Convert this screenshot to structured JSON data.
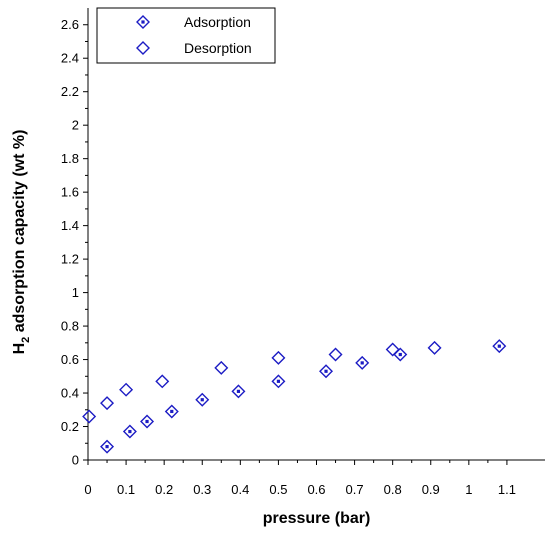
{
  "chart_data": {
    "type": "scatter",
    "xlabel": "pressure (bar)",
    "ylabel_main": "H",
    "ylabel_sub": "2",
    "ylabel_rest": " adsorption capacity (wt %)",
    "xlim": [
      0,
      1.2
    ],
    "ylim": [
      0,
      2.7
    ],
    "xticks": [
      0,
      0.1,
      0.2,
      0.3,
      0.4,
      0.5,
      0.6,
      0.7,
      0.8,
      0.9,
      1,
      1.1
    ],
    "yticks": [
      0,
      0.2,
      0.4,
      0.6,
      0.8,
      1,
      1.2,
      1.4,
      1.6,
      1.8,
      2,
      2.2,
      2.4,
      2.6
    ],
    "grid": false,
    "legend_position": "top-left",
    "marker_color": "#1c1cc4",
    "series": [
      {
        "name": "Adsorption",
        "marker": "diamond-dot",
        "x": [
          0.05,
          0.11,
          0.155,
          0.22,
          0.3,
          0.395,
          0.5,
          0.625,
          0.72,
          0.82,
          1.08
        ],
        "y": [
          0.08,
          0.17,
          0.23,
          0.29,
          0.36,
          0.41,
          0.47,
          0.53,
          0.58,
          0.63,
          0.68
        ]
      },
      {
        "name": "Desorption",
        "marker": "diamond-open",
        "x": [
          0.003,
          0.05,
          0.1,
          0.195,
          0.35,
          0.5,
          0.65,
          0.8,
          0.91
        ],
        "y": [
          0.26,
          0.34,
          0.42,
          0.47,
          0.55,
          0.61,
          0.63,
          0.66,
          0.67
        ]
      }
    ]
  }
}
